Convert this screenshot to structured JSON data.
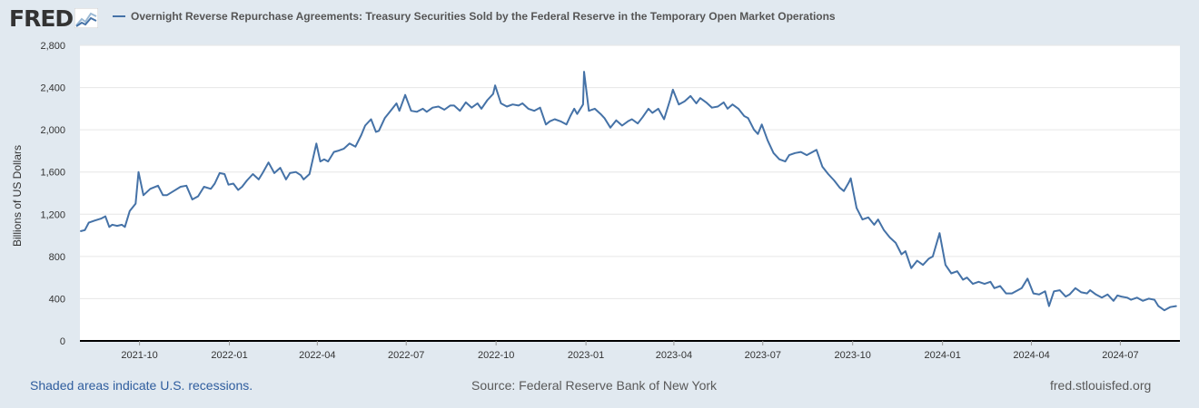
{
  "brand": {
    "name": "FRED"
  },
  "legend": {
    "label": "Overnight Reverse Repurchase Agreements: Treasury Securities Sold by the Federal Reserve in the Temporary Open Market Operations",
    "color": "#4572a7"
  },
  "footer": {
    "recession_note": "Shaded areas indicate U.S. recessions.",
    "source": "Source: Federal Reserve Bank of New York",
    "site": "fred.stlouisfed.org"
  },
  "chart_data": {
    "type": "line",
    "title": "",
    "xlabel": "",
    "ylabel": "Billions of US Dollars",
    "xlim": [
      "2021-08-01",
      "2024-08-31"
    ],
    "ylim": [
      0,
      2800
    ],
    "y_ticks": [
      0,
      400,
      800,
      1200,
      1600,
      2000,
      2400,
      2800
    ],
    "y_tick_labels": [
      "0",
      "400",
      "800",
      "1,200",
      "1,600",
      "2,000",
      "2,400",
      "2,800"
    ],
    "x_ticks": [
      "2021-10-01",
      "2022-01-01",
      "2022-04-01",
      "2022-07-01",
      "2022-10-01",
      "2023-01-01",
      "2023-04-01",
      "2023-07-01",
      "2023-10-01",
      "2024-01-01",
      "2024-04-01",
      "2024-07-01"
    ],
    "x_tick_labels": [
      "2021-10",
      "2022-01",
      "2022-04",
      "2022-07",
      "2022-10",
      "2023-01",
      "2023-04",
      "2023-07",
      "2023-10",
      "2024-01",
      "2024-04",
      "2024-07"
    ],
    "grid": true,
    "series": [
      {
        "name": "Overnight Reverse Repurchase Agreements: Treasury Securities Sold by the Federal Reserve in the Temporary Open Market Operations",
        "color": "#4572a7",
        "points": [
          [
            "2021-08-02",
            1040
          ],
          [
            "2021-08-06",
            1050
          ],
          [
            "2021-08-10",
            1120
          ],
          [
            "2021-08-16",
            1140
          ],
          [
            "2021-08-23",
            1160
          ],
          [
            "2021-08-27",
            1180
          ],
          [
            "2021-08-31",
            1080
          ],
          [
            "2021-09-03",
            1100
          ],
          [
            "2021-09-08",
            1090
          ],
          [
            "2021-09-13",
            1100
          ],
          [
            "2021-09-16",
            1080
          ],
          [
            "2021-09-21",
            1230
          ],
          [
            "2021-09-27",
            1300
          ],
          [
            "2021-09-30",
            1600
          ],
          [
            "2021-10-05",
            1380
          ],
          [
            "2021-10-12",
            1440
          ],
          [
            "2021-10-20",
            1470
          ],
          [
            "2021-10-25",
            1380
          ],
          [
            "2021-10-29",
            1380
          ],
          [
            "2021-11-05",
            1420
          ],
          [
            "2021-11-12",
            1460
          ],
          [
            "2021-11-18",
            1470
          ],
          [
            "2021-11-24",
            1340
          ],
          [
            "2021-11-30",
            1370
          ],
          [
            "2021-12-06",
            1460
          ],
          [
            "2021-12-13",
            1440
          ],
          [
            "2021-12-17",
            1490
          ],
          [
            "2021-12-22",
            1590
          ],
          [
            "2021-12-27",
            1580
          ],
          [
            "2021-12-31",
            1480
          ],
          [
            "2022-01-05",
            1490
          ],
          [
            "2022-01-10",
            1430
          ],
          [
            "2022-01-14",
            1460
          ],
          [
            "2022-01-19",
            1520
          ],
          [
            "2022-01-25",
            1580
          ],
          [
            "2022-01-31",
            1530
          ],
          [
            "2022-02-04",
            1590
          ],
          [
            "2022-02-10",
            1690
          ],
          [
            "2022-02-16",
            1590
          ],
          [
            "2022-02-22",
            1640
          ],
          [
            "2022-02-28",
            1530
          ],
          [
            "2022-03-04",
            1590
          ],
          [
            "2022-03-10",
            1600
          ],
          [
            "2022-03-15",
            1570
          ],
          [
            "2022-03-18",
            1530
          ],
          [
            "2022-03-24",
            1580
          ],
          [
            "2022-03-31",
            1870
          ],
          [
            "2022-04-04",
            1700
          ],
          [
            "2022-04-08",
            1720
          ],
          [
            "2022-04-12",
            1700
          ],
          [
            "2022-04-18",
            1790
          ],
          [
            "2022-04-22",
            1800
          ],
          [
            "2022-04-28",
            1820
          ],
          [
            "2022-05-04",
            1870
          ],
          [
            "2022-05-10",
            1840
          ],
          [
            "2022-05-16",
            1950
          ],
          [
            "2022-05-20",
            2040
          ],
          [
            "2022-05-26",
            2100
          ],
          [
            "2022-05-31",
            1980
          ],
          [
            "2022-06-03",
            1990
          ],
          [
            "2022-06-09",
            2110
          ],
          [
            "2022-06-15",
            2180
          ],
          [
            "2022-06-21",
            2250
          ],
          [
            "2022-06-24",
            2180
          ],
          [
            "2022-06-30",
            2330
          ],
          [
            "2022-07-06",
            2180
          ],
          [
            "2022-07-12",
            2170
          ],
          [
            "2022-07-18",
            2200
          ],
          [
            "2022-07-22",
            2170
          ],
          [
            "2022-07-28",
            2210
          ],
          [
            "2022-08-03",
            2220
          ],
          [
            "2022-08-09",
            2190
          ],
          [
            "2022-08-15",
            2230
          ],
          [
            "2022-08-19",
            2230
          ],
          [
            "2022-08-25",
            2180
          ],
          [
            "2022-08-31",
            2260
          ],
          [
            "2022-09-06",
            2210
          ],
          [
            "2022-09-12",
            2250
          ],
          [
            "2022-09-16",
            2200
          ],
          [
            "2022-09-22",
            2280
          ],
          [
            "2022-09-28",
            2340
          ],
          [
            "2022-09-30",
            2420
          ],
          [
            "2022-10-06",
            2250
          ],
          [
            "2022-10-12",
            2220
          ],
          [
            "2022-10-18",
            2240
          ],
          [
            "2022-10-24",
            2230
          ],
          [
            "2022-10-28",
            2250
          ],
          [
            "2022-11-03",
            2200
          ],
          [
            "2022-11-09",
            2180
          ],
          [
            "2022-11-15",
            2210
          ],
          [
            "2022-11-21",
            2050
          ],
          [
            "2022-11-25",
            2080
          ],
          [
            "2022-11-30",
            2100
          ],
          [
            "2022-12-06",
            2080
          ],
          [
            "2022-12-12",
            2050
          ],
          [
            "2022-12-16",
            2130
          ],
          [
            "2022-12-20",
            2200
          ],
          [
            "2022-12-23",
            2150
          ],
          [
            "2022-12-29",
            2240
          ],
          [
            "2022-12-30",
            2550
          ],
          [
            "2023-01-04",
            2180
          ],
          [
            "2023-01-10",
            2200
          ],
          [
            "2023-01-16",
            2150
          ],
          [
            "2023-01-20",
            2110
          ],
          [
            "2023-01-26",
            2020
          ],
          [
            "2023-02-01",
            2090
          ],
          [
            "2023-02-07",
            2040
          ],
          [
            "2023-02-13",
            2080
          ],
          [
            "2023-02-17",
            2100
          ],
          [
            "2023-02-23",
            2060
          ],
          [
            "2023-02-28",
            2120
          ],
          [
            "2023-03-06",
            2200
          ],
          [
            "2023-03-10",
            2160
          ],
          [
            "2023-03-16",
            2200
          ],
          [
            "2023-03-22",
            2100
          ],
          [
            "2023-03-28",
            2280
          ],
          [
            "2023-03-31",
            2380
          ],
          [
            "2023-04-06",
            2240
          ],
          [
            "2023-04-12",
            2270
          ],
          [
            "2023-04-18",
            2320
          ],
          [
            "2023-04-24",
            2250
          ],
          [
            "2023-04-28",
            2300
          ],
          [
            "2023-05-04",
            2260
          ],
          [
            "2023-05-10",
            2210
          ],
          [
            "2023-05-16",
            2220
          ],
          [
            "2023-05-22",
            2260
          ],
          [
            "2023-05-26",
            2200
          ],
          [
            "2023-05-31",
            2240
          ],
          [
            "2023-06-06",
            2200
          ],
          [
            "2023-06-12",
            2130
          ],
          [
            "2023-06-16",
            2110
          ],
          [
            "2023-06-22",
            2000
          ],
          [
            "2023-06-26",
            1960
          ],
          [
            "2023-06-30",
            2050
          ],
          [
            "2023-07-06",
            1900
          ],
          [
            "2023-07-12",
            1780
          ],
          [
            "2023-07-18",
            1720
          ],
          [
            "2023-07-24",
            1700
          ],
          [
            "2023-07-28",
            1760
          ],
          [
            "2023-08-03",
            1780
          ],
          [
            "2023-08-09",
            1790
          ],
          [
            "2023-08-15",
            1760
          ],
          [
            "2023-08-21",
            1790
          ],
          [
            "2023-08-25",
            1810
          ],
          [
            "2023-08-31",
            1650
          ],
          [
            "2023-09-06",
            1580
          ],
          [
            "2023-09-12",
            1520
          ],
          [
            "2023-09-18",
            1450
          ],
          [
            "2023-09-22",
            1420
          ],
          [
            "2023-09-27",
            1500
          ],
          [
            "2023-09-29",
            1540
          ],
          [
            "2023-10-05",
            1260
          ],
          [
            "2023-10-11",
            1150
          ],
          [
            "2023-10-17",
            1170
          ],
          [
            "2023-10-23",
            1100
          ],
          [
            "2023-10-27",
            1150
          ],
          [
            "2023-11-02",
            1050
          ],
          [
            "2023-11-08",
            980
          ],
          [
            "2023-11-14",
            930
          ],
          [
            "2023-11-20",
            820
          ],
          [
            "2023-11-24",
            850
          ],
          [
            "2023-11-30",
            690
          ],
          [
            "2023-12-06",
            760
          ],
          [
            "2023-12-12",
            720
          ],
          [
            "2023-12-18",
            780
          ],
          [
            "2023-12-22",
            800
          ],
          [
            "2023-12-29",
            1020
          ],
          [
            "2024-01-04",
            720
          ],
          [
            "2024-01-10",
            640
          ],
          [
            "2024-01-16",
            660
          ],
          [
            "2024-01-22",
            580
          ],
          [
            "2024-01-26",
            600
          ],
          [
            "2024-02-01",
            540
          ],
          [
            "2024-02-07",
            560
          ],
          [
            "2024-02-13",
            540
          ],
          [
            "2024-02-19",
            560
          ],
          [
            "2024-02-23",
            500
          ],
          [
            "2024-02-29",
            520
          ],
          [
            "2024-03-06",
            450
          ],
          [
            "2024-03-12",
            450
          ],
          [
            "2024-03-18",
            480
          ],
          [
            "2024-03-22",
            500
          ],
          [
            "2024-03-28",
            590
          ],
          [
            "2024-04-03",
            450
          ],
          [
            "2024-04-09",
            440
          ],
          [
            "2024-04-15",
            470
          ],
          [
            "2024-04-19",
            330
          ],
          [
            "2024-04-24",
            470
          ],
          [
            "2024-04-30",
            480
          ],
          [
            "2024-05-06",
            420
          ],
          [
            "2024-05-10",
            440
          ],
          [
            "2024-05-16",
            500
          ],
          [
            "2024-05-22",
            460
          ],
          [
            "2024-05-28",
            450
          ],
          [
            "2024-05-31",
            480
          ],
          [
            "2024-06-06",
            440
          ],
          [
            "2024-06-12",
            410
          ],
          [
            "2024-06-18",
            440
          ],
          [
            "2024-06-24",
            380
          ],
          [
            "2024-06-28",
            430
          ],
          [
            "2024-07-02",
            420
          ],
          [
            "2024-07-08",
            410
          ],
          [
            "2024-07-12",
            390
          ],
          [
            "2024-07-18",
            410
          ],
          [
            "2024-07-24",
            380
          ],
          [
            "2024-07-30",
            400
          ],
          [
            "2024-08-05",
            390
          ],
          [
            "2024-08-09",
            330
          ],
          [
            "2024-08-15",
            290
          ],
          [
            "2024-08-21",
            320
          ],
          [
            "2024-08-27",
            330
          ]
        ]
      }
    ]
  }
}
